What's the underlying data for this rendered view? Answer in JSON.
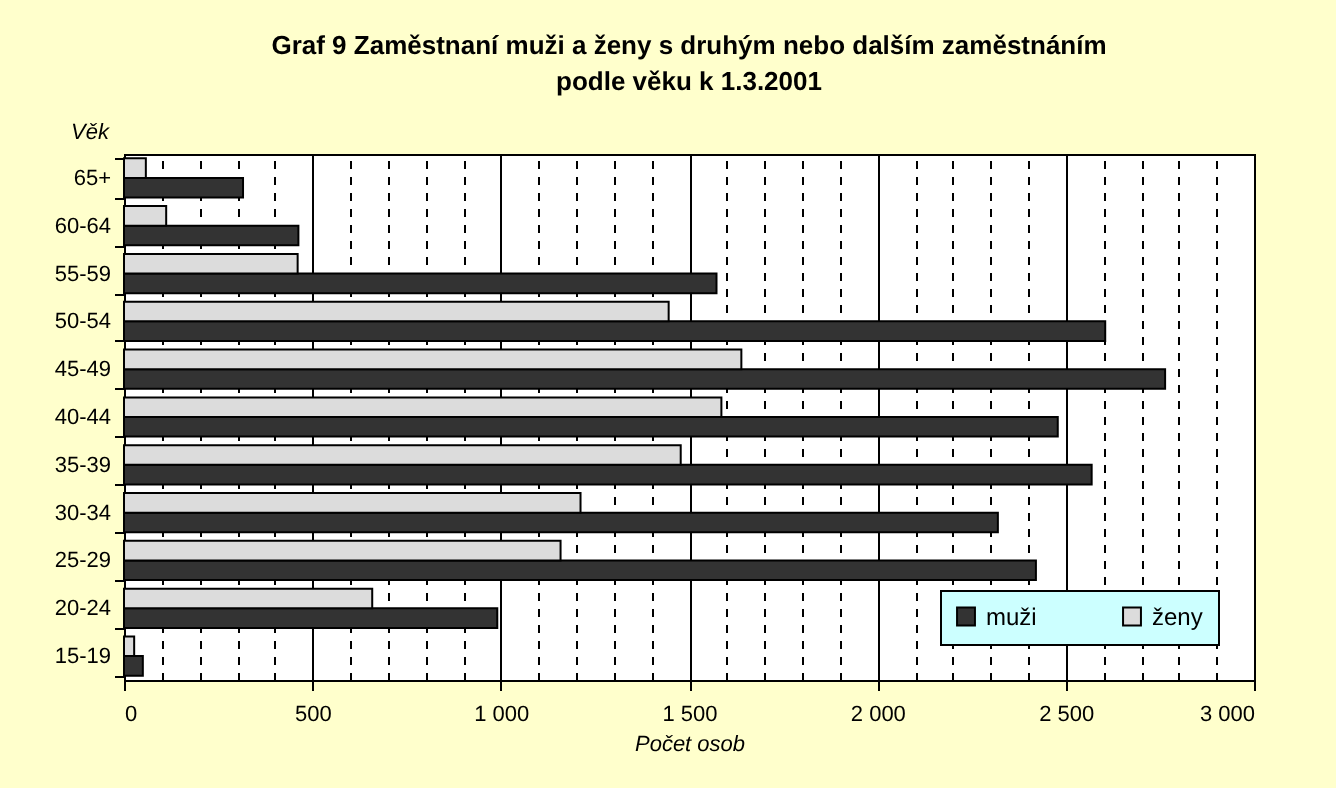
{
  "chart_data": {
    "type": "bar",
    "orientation": "horizontal",
    "title": "Graf 9 Zaměstnaní muži a ženy s druhým nebo dalším zaměstnáním podle věku k 1.3.2001",
    "xlabel": "Počet osob",
    "ylabel": "Věk",
    "categories": [
      "65+",
      "60-64",
      "55-59",
      "50-54",
      "45-49",
      "40-44",
      "35-39",
      "30-34",
      "25-29",
      "20-24",
      "15-19"
    ],
    "series": [
      {
        "name": "muži",
        "color": "#333333",
        "values": [
          316,
          463,
          1573,
          2605,
          2764,
          2479,
          2569,
          2320,
          2421,
          991,
          50
        ]
      },
      {
        "name": "ženy",
        "color": "#dcdcdc",
        "values": [
          58,
          112,
          461,
          1446,
          1639,
          1586,
          1478,
          1212,
          1159,
          659,
          27
        ]
      }
    ],
    "xlim": [
      0,
      3000
    ],
    "xticks": [
      0,
      {
        "value": 100,
        "label": null
      },
      {
        "value": 200,
        "label": null
      },
      {
        "value": 300,
        "label": null
      },
      {
        "value": 400,
        "label": null
      },
      500,
      {
        "value": 600,
        "label": null
      },
      {
        "value": 700,
        "label": null
      },
      {
        "value": 800,
        "label": null
      },
      {
        "value": 900,
        "label": null
      },
      {
        "value": 1000,
        "label": "1 000"
      },
      {
        "value": 1100,
        "label": null
      },
      {
        "value": 1200,
        "label": null
      },
      {
        "value": 1300,
        "label": null
      },
      {
        "value": 1400,
        "label": null
      },
      {
        "value": 1500,
        "label": "1 500"
      },
      {
        "value": 1600,
        "label": null
      },
      {
        "value": 1700,
        "label": null
      },
      {
        "value": 1800,
        "label": null
      },
      {
        "value": 1900,
        "label": null
      },
      {
        "value": 2000,
        "label": "2 000"
      },
      {
        "value": 2100,
        "label": null
      },
      {
        "value": 2200,
        "label": null
      },
      {
        "value": 2300,
        "label": null
      },
      {
        "value": 2400,
        "label": null
      },
      {
        "value": 2500,
        "label": "2 500"
      },
      {
        "value": 2600,
        "label": null
      },
      {
        "value": 2700,
        "label": null
      },
      {
        "value": 2800,
        "label": null
      },
      {
        "value": 2900,
        "label": null
      },
      {
        "value": 3000,
        "label": "3 000"
      }
    ],
    "grid": "x",
    "legend": "bottom right"
  }
}
